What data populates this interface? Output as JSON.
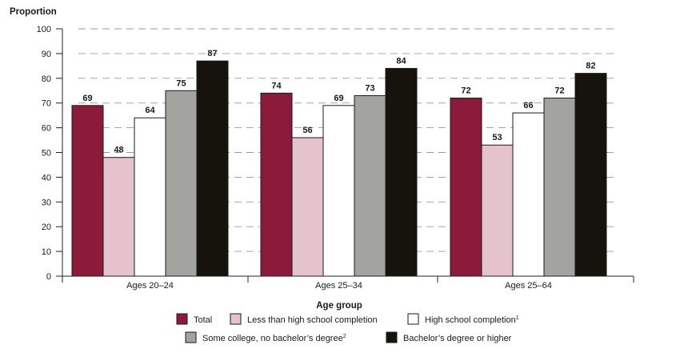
{
  "chart_data": {
    "type": "bar",
    "title": "",
    "ylabel": "Proportion",
    "xlabel": "Age group",
    "ylim": [
      0,
      100
    ],
    "yticks": [
      0,
      10,
      20,
      30,
      40,
      50,
      60,
      70,
      80,
      90,
      100
    ],
    "grid": "dashed horizontal",
    "legend_position": "bottom",
    "categories": [
      "Ages 20–24",
      "Ages 25–34",
      "Ages 25–64"
    ],
    "series": [
      {
        "name": "Total",
        "color": "#8c1a3a",
        "values": [
          69,
          74,
          72
        ]
      },
      {
        "name": "Less than high school completion",
        "color": "#e5c3cc",
        "values": [
          48,
          56,
          53
        ]
      },
      {
        "name": "High school completion",
        "sup": "1",
        "color": "#ffffff",
        "values": [
          64,
          69,
          66
        ]
      },
      {
        "name": "Some college, no bachelor’s degree",
        "sup": "2",
        "color": "#a3a3a0",
        "values": [
          75,
          73,
          72
        ]
      },
      {
        "name": "Bachelor’s degree or higher",
        "color": "#16120c",
        "values": [
          87,
          84,
          82
        ]
      }
    ]
  }
}
